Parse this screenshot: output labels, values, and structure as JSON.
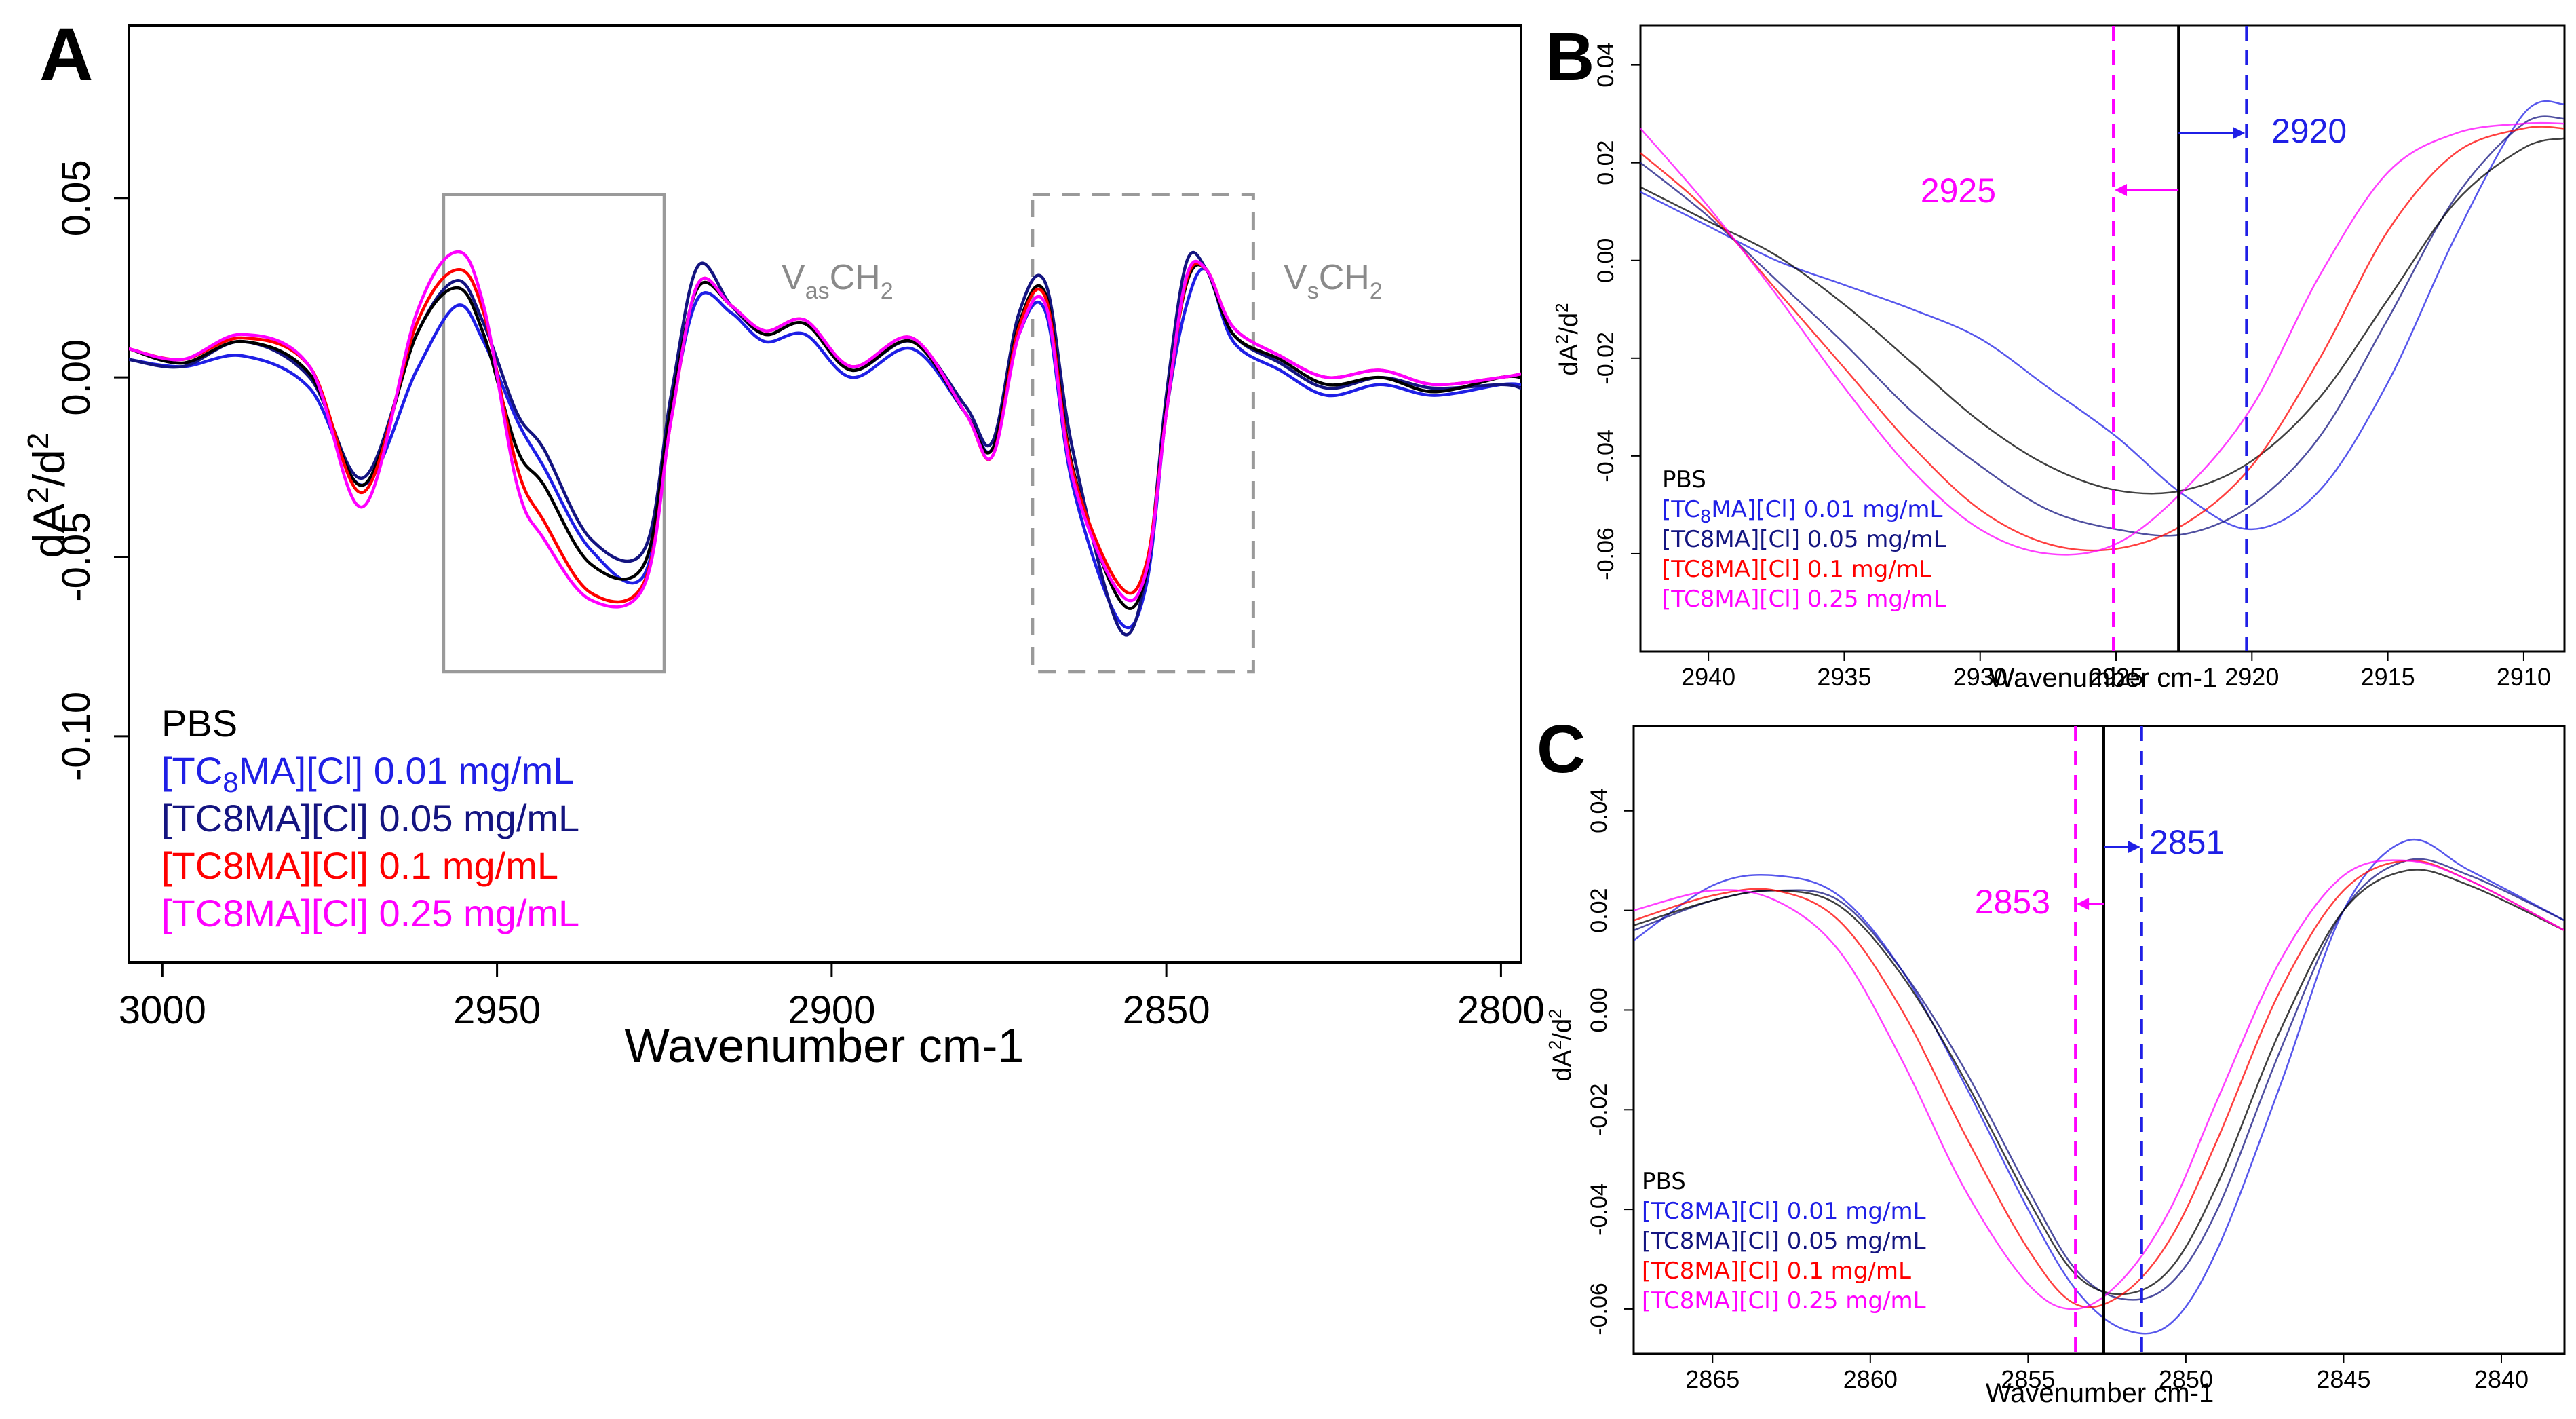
{
  "colors": {
    "PBS": "#000000",
    "c001": "#1f1fe6",
    "c005": "#141480",
    "c01": "#ff0000",
    "c025": "#ff00ff",
    "box": "#9a9a9a",
    "blue_marker": "#1f1fe6",
    "magenta_marker": "#ff00ff"
  },
  "chart_data": [
    {
      "panel": "A",
      "type": "line",
      "title": "",
      "xlabel": "Wavenumber cm-1",
      "ylabel": "dA²/d²",
      "xlim": [
        3005,
        2797
      ],
      "ylim": [
        -0.163,
        0.098
      ],
      "xticks": [
        3000,
        2950,
        2900,
        2850,
        2800
      ],
      "yticks": [
        -0.1,
        -0.05,
        0.0,
        0.05
      ],
      "xtick_labels": [
        "3000",
        "2950",
        "2900",
        "2850",
        "2800"
      ],
      "ytick_labels": [
        "-0.10",
        "-0.05",
        "0.00",
        "0.05"
      ],
      "x": [
        3005,
        2997,
        2988,
        2978,
        2970,
        2962,
        2956,
        2952,
        2947,
        2943,
        2936,
        2928,
        2924,
        2920,
        2915,
        2910,
        2904,
        2897,
        2888,
        2880,
        2876,
        2872,
        2868,
        2864,
        2857,
        2853,
        2850,
        2847,
        2844,
        2840,
        2833,
        2826,
        2818,
        2810,
        2800,
        2797
      ],
      "series": [
        {
          "name": "[TC₈MA][Cl] 0.01 mg/mL",
          "color_key": "c001",
          "values": [
            0.005,
            0.003,
            0.006,
            -0.003,
            -0.03,
            0.002,
            0.02,
            0.01,
            -0.012,
            -0.025,
            -0.048,
            -0.055,
            -0.01,
            0.022,
            0.018,
            0.01,
            0.012,
            0.0,
            0.008,
            -0.01,
            -0.02,
            0.012,
            0.018,
            -0.03,
            -0.068,
            -0.058,
            -0.01,
            0.02,
            0.03,
            0.01,
            0.002,
            -0.005,
            -0.002,
            -0.005,
            -0.002,
            -0.002
          ]
        },
        {
          "name": "[TC8MA][Cl] 0.05 mg/mL",
          "color_key": "c005",
          "values": [
            0.005,
            0.003,
            0.01,
            0.0,
            -0.028,
            0.012,
            0.027,
            0.015,
            -0.01,
            -0.02,
            -0.045,
            -0.048,
            -0.005,
            0.031,
            0.02,
            0.012,
            0.015,
            0.002,
            0.01,
            -0.008,
            -0.018,
            0.018,
            0.026,
            -0.02,
            -0.07,
            -0.055,
            -0.005,
            0.032,
            0.03,
            0.012,
            0.004,
            -0.003,
            0.0,
            -0.003,
            -0.002,
            -0.003
          ]
        },
        {
          "name": "PBS",
          "color_key": "PBS",
          "values": [
            0.008,
            0.004,
            0.01,
            0.001,
            -0.03,
            0.012,
            0.025,
            0.012,
            -0.02,
            -0.03,
            -0.052,
            -0.052,
            -0.008,
            0.025,
            0.02,
            0.012,
            0.015,
            0.002,
            0.01,
            -0.01,
            -0.02,
            0.015,
            0.023,
            -0.025,
            -0.062,
            -0.055,
            -0.008,
            0.026,
            0.03,
            0.012,
            0.005,
            -0.002,
            0.0,
            -0.004,
            0.0,
            0.0
          ]
        },
        {
          "name": "[TC8MA][Cl] 0.1 mg/mL",
          "color_key": "c01",
          "values": [
            0.008,
            0.005,
            0.011,
            0.003,
            -0.032,
            0.015,
            0.03,
            0.018,
            -0.025,
            -0.04,
            -0.06,
            -0.057,
            -0.012,
            0.026,
            0.02,
            0.013,
            0.016,
            0.003,
            0.011,
            -0.01,
            -0.022,
            0.014,
            0.022,
            -0.026,
            -0.058,
            -0.052,
            -0.01,
            0.027,
            0.03,
            0.014,
            0.006,
            0.0,
            0.002,
            -0.002,
            0.0,
            0.001
          ]
        },
        {
          "name": "[TC8MA][Cl] 0.25 mg/mL",
          "color_key": "c025",
          "values": [
            0.008,
            0.005,
            0.012,
            0.003,
            -0.036,
            0.018,
            0.035,
            0.02,
            -0.03,
            -0.045,
            -0.062,
            -0.058,
            -0.012,
            0.026,
            0.02,
            0.013,
            0.016,
            0.003,
            0.011,
            -0.01,
            -0.022,
            0.012,
            0.02,
            -0.028,
            -0.06,
            -0.054,
            -0.01,
            0.028,
            0.03,
            0.014,
            0.006,
            0.0,
            0.002,
            -0.002,
            0.0,
            0.001
          ]
        }
      ],
      "boxes": [
        {
          "label": "VₐₛCH₂",
          "style": "solid",
          "x_range": [
            2958,
            2925
          ],
          "y_range": [
            -0.082,
            0.051
          ]
        },
        {
          "label": "VₛCH₂",
          "style": "dashed",
          "x_range": [
            2870,
            2837
          ],
          "y_range": [
            -0.082,
            0.051
          ]
        }
      ],
      "legend": [
        "PBS",
        "[TC8MA][Cl] 0.01 mg/mL",
        "[TC8MA][Cl] 0.05 mg/mL",
        "[TC8MA][Cl] 0.1 mg/mL",
        "[TC8MA][Cl] 0.25 mg/mL"
      ],
      "legend_position": "bottom-left"
    },
    {
      "panel": "B",
      "type": "line",
      "xlabel": "Wavenumber cm-1",
      "ylabel": "dA²/d²",
      "xlim": [
        2942.5,
        2908.5
      ],
      "ylim": [
        -0.08,
        0.048
      ],
      "xticks": [
        2940,
        2935,
        2930,
        2925,
        2920,
        2915,
        2910
      ],
      "yticks": [
        -0.06,
        -0.04,
        -0.02,
        0.0,
        0.02,
        0.04
      ],
      "xtick_labels": [
        "2940",
        "2935",
        "2930",
        "2925",
        "2920",
        "2915",
        "2910"
      ],
      "ytick_labels": [
        "-0.06",
        "-0.04",
        "-0.02",
        "0.00",
        "0.02",
        "0.04"
      ],
      "x": [
        2942.5,
        2940,
        2937.5,
        2935,
        2932.5,
        2930,
        2927.5,
        2925,
        2922.5,
        2920,
        2917.5,
        2915,
        2912.5,
        2910,
        2908.5
      ],
      "series": [
        {
          "name": "[TC8MA][Cl] 0.01 mg/mL",
          "color_key": "c001",
          "values": [
            0.014,
            0.007,
            0.0,
            -0.005,
            -0.01,
            -0.016,
            -0.026,
            -0.036,
            -0.048,
            -0.055,
            -0.047,
            -0.025,
            0.005,
            0.03,
            0.032
          ]
        },
        {
          "name": "[TC8MA][Cl] 0.05 mg/mL",
          "color_key": "c005",
          "values": [
            0.02,
            0.009,
            -0.004,
            -0.017,
            -0.031,
            -0.042,
            -0.051,
            -0.055,
            -0.056,
            -0.05,
            -0.036,
            -0.012,
            0.013,
            0.028,
            0.029
          ]
        },
        {
          "name": "PBS",
          "color_key": "PBS",
          "values": [
            0.015,
            0.008,
            0.001,
            -0.009,
            -0.021,
            -0.033,
            -0.042,
            -0.047,
            -0.047,
            -0.041,
            -0.028,
            -0.008,
            0.012,
            0.023,
            0.025
          ]
        },
        {
          "name": "[TC8MA][Cl] 0.1 mg/mL",
          "color_key": "c01",
          "values": [
            0.022,
            0.01,
            -0.006,
            -0.022,
            -0.038,
            -0.051,
            -0.058,
            -0.059,
            -0.054,
            -0.042,
            -0.02,
            0.006,
            0.022,
            0.027,
            0.027
          ]
        },
        {
          "name": "[TC8MA][Cl] 0.25 mg/mL",
          "color_key": "c025",
          "values": [
            0.027,
            0.011,
            -0.007,
            -0.026,
            -0.043,
            -0.055,
            -0.06,
            -0.058,
            -0.047,
            -0.03,
            -0.003,
            0.018,
            0.026,
            0.028,
            0.028
          ]
        }
      ],
      "vlines": [
        {
          "x": 2925.1,
          "style": "dashed",
          "color_key": "magenta_marker"
        },
        {
          "x": 2922.7,
          "style": "solid",
          "color_key": "PBS"
        },
        {
          "x": 2920.2,
          "style": "dashed",
          "color_key": "blue_marker"
        }
      ],
      "annotations": [
        {
          "text": "2925",
          "color_key": "magenta_marker",
          "arrow": "left"
        },
        {
          "text": "2920",
          "color_key": "blue_marker",
          "arrow": "right"
        }
      ],
      "legend": [
        "PBS",
        "[TC8MA][Cl] 0.01 mg/mL",
        "[TC8MA][Cl] 0.05 mg/mL",
        "[TC8MA][Cl] 0.1 mg/mL",
        "[TC8MA][Cl] 0.25 mg/mL"
      ],
      "legend_position": "bottom-left"
    },
    {
      "panel": "C",
      "type": "line",
      "xlabel": "Wavenumber cm-1",
      "ylabel": "dA²/d²",
      "xlim": [
        2867.5,
        2838
      ],
      "ylim": [
        -0.069,
        0.057
      ],
      "xticks": [
        2865,
        2860,
        2855,
        2850,
        2845,
        2840
      ],
      "yticks": [
        -0.06,
        -0.04,
        -0.02,
        0.0,
        0.02,
        0.04
      ],
      "xtick_labels": [
        "2865",
        "2860",
        "2855",
        "2850",
        "2845",
        "2840"
      ],
      "ytick_labels": [
        "-0.06",
        "-0.04",
        "-0.02",
        "0.00",
        "0.02",
        "0.04"
      ],
      "x": [
        2867.5,
        2865,
        2863,
        2861,
        2859,
        2857,
        2855,
        2853.5,
        2852,
        2850.5,
        2849,
        2847,
        2845,
        2843,
        2841,
        2838
      ],
      "series": [
        {
          "name": "[TC8MA][Cl] 0.01 mg/mL",
          "color_key": "c001",
          "values": [
            0.014,
            0.025,
            0.027,
            0.023,
            0.008,
            -0.015,
            -0.04,
            -0.056,
            -0.064,
            -0.063,
            -0.048,
            -0.015,
            0.02,
            0.034,
            0.028,
            0.018
          ]
        },
        {
          "name": "[TC8MA][Cl] 0.05 mg/mL",
          "color_key": "c005",
          "values": [
            0.016,
            0.022,
            0.024,
            0.022,
            0.008,
            -0.012,
            -0.036,
            -0.052,
            -0.058,
            -0.055,
            -0.04,
            -0.008,
            0.02,
            0.03,
            0.027,
            0.018
          ]
        },
        {
          "name": "PBS",
          "color_key": "PBS",
          "values": [
            0.017,
            0.022,
            0.024,
            0.021,
            0.007,
            -0.014,
            -0.038,
            -0.053,
            -0.057,
            -0.052,
            -0.035,
            -0.004,
            0.02,
            0.028,
            0.025,
            0.016
          ]
        },
        {
          "name": "[TC8MA][Cl] 0.1 mg/mL",
          "color_key": "c01",
          "values": [
            0.018,
            0.023,
            0.024,
            0.018,
            0.0,
            -0.025,
            -0.048,
            -0.059,
            -0.057,
            -0.046,
            -0.026,
            0.004,
            0.024,
            0.03,
            0.026,
            0.016
          ]
        },
        {
          "name": "[TC8MA][Cl] 0.25 mg/mL",
          "color_key": "c025",
          "values": [
            0.02,
            0.024,
            0.022,
            0.012,
            -0.01,
            -0.036,
            -0.055,
            -0.06,
            -0.054,
            -0.04,
            -0.018,
            0.01,
            0.027,
            0.03,
            0.026,
            0.016
          ]
        }
      ],
      "vlines": [
        {
          "x": 2853.5,
          "style": "dashed",
          "color_key": "magenta_marker"
        },
        {
          "x": 2852.6,
          "style": "solid",
          "color_key": "PBS"
        },
        {
          "x": 2851.4,
          "style": "dashed",
          "color_key": "blue_marker"
        }
      ],
      "annotations": [
        {
          "text": "2853",
          "color_key": "magenta_marker",
          "arrow": "left"
        },
        {
          "text": "2851",
          "color_key": "blue_marker",
          "arrow": "right"
        }
      ],
      "legend": [
        "PBS",
        "[TC8MA][Cl] 0.01 mg/mL",
        "[TC8MA][Cl] 0.05 mg/mL",
        "[TC8MA][Cl] 0.1 mg/mL",
        "[TC8MA][Cl] 0.25 mg/mL"
      ],
      "legend_position": "bottom-left"
    }
  ],
  "panels": {
    "A": {
      "letter": "A",
      "xlabel": "Wavenumber cm-1",
      "ylabel_main": "dA",
      "ylabel_sup1": "2",
      "ylabel_mid": "/d",
      "ylabel_sup2": "2",
      "box1_main": "V",
      "box1_sub": "as",
      "box1_tail": "CH",
      "box1_sub2": "2",
      "box2_main": "V",
      "box2_sub": "s",
      "box2_tail": "CH",
      "box2_sub2": "2",
      "legend_pbs": "PBS",
      "legend_001_pre": "[TC",
      "legend_001_sub": "8",
      "legend_001_post": "MA][Cl] 0.01 mg/mL",
      "legend_005": "[TC8MA][Cl] 0.05 mg/mL",
      "legend_01": "[TC8MA][Cl] 0.1 mg/mL",
      "legend_025": "[TC8MA][Cl] 0.25 mg/mL"
    },
    "B": {
      "letter": "B",
      "xlabel": "Wavenumber cm-1",
      "ylabel_main": "dA",
      "ylabel_sup1": "2",
      "ylabel_mid": "/d",
      "ylabel_sup2": "2",
      "ann_left": "2925",
      "ann_right": "2920",
      "legend_pbs": "PBS",
      "legend_001_pre": "[TC",
      "legend_001_sub": "8",
      "legend_001_post": "MA][Cl] 0.01 mg/mL",
      "legend_005": "[TC8MA][Cl] 0.05 mg/mL",
      "legend_01": "[TC8MA][Cl] 0.1 mg/mL",
      "legend_025": "[TC8MA][Cl] 0.25 mg/mL"
    },
    "C": {
      "letter": "C",
      "xlabel": "Wavenumber cm-1",
      "ylabel_main": "dA",
      "ylabel_sup1": "2",
      "ylabel_mid": "/d",
      "ylabel_sup2": "2",
      "ann_left": "2853",
      "ann_right": "2851",
      "legend_pbs": "PBS",
      "legend_001": "[TC8MA][Cl] 0.01 mg/mL",
      "legend_005": "[TC8MA][Cl] 0.05 mg/mL",
      "legend_01": "[TC8MA][Cl] 0.1 mg/mL",
      "legend_025": "[TC8MA][Cl] 0.25 mg/mL"
    }
  }
}
